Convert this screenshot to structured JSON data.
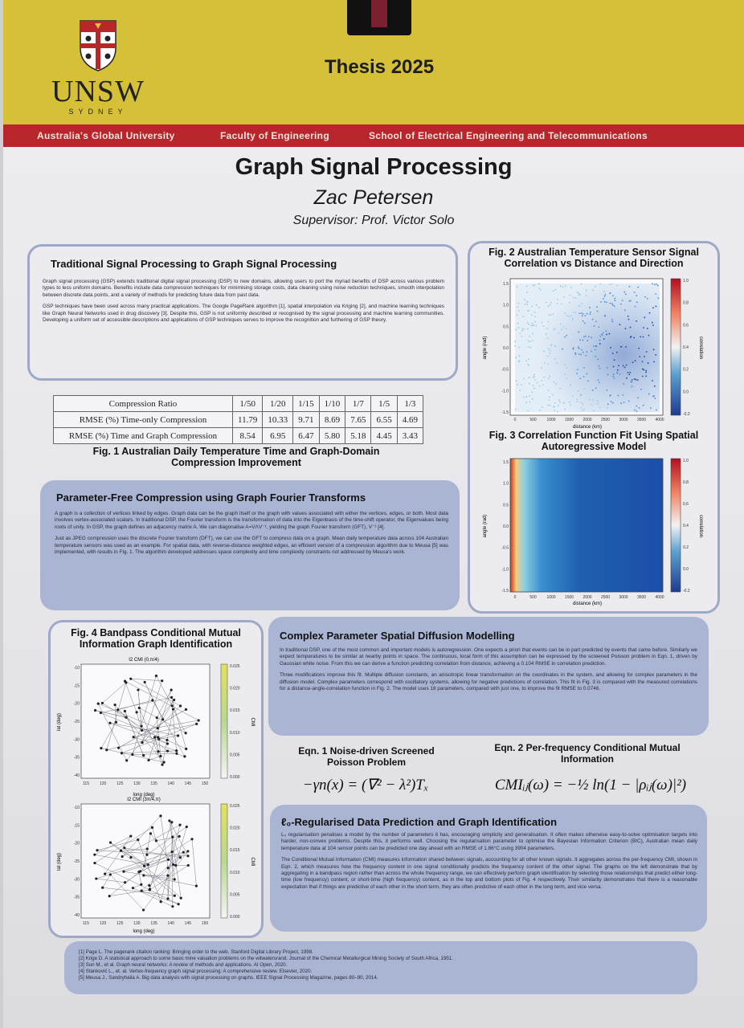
{
  "header": {
    "logo_word": "UNSW",
    "logo_sub": "SYDNEY",
    "thesis_label": "Thesis  2025",
    "bar_left": "Australia's Global University",
    "bar_mid": "Faculty of Engineering",
    "bar_right": "School of Electrical Engineering and Telecommunications",
    "accent": "#d6c038",
    "bar_color": "#b8262c"
  },
  "title": "Graph Signal Processing",
  "author": "Zac Petersen",
  "supervisor": "Supervisor: Prof. Victor Solo",
  "intro": {
    "heading": "Traditional Signal Processing to Graph Signal Processing",
    "p1": "Graph signal processing (GSP) extends traditional digital signal processing (DSP) to new domains, allowing users to port the myriad benefits of DSP across various problem types to less uniform domains. Benefits include data compression techniques for minimising storage costs, data cleaning using noise reduction techniques, smooth interpolation between discrete data points, and a variety of methods for predicting future data from past data.",
    "p2": "GSP techniques have been used across many practical applications. The Google PageRank algorithm [1], spatial interpolation via Kriging [2], and machine learning techniques like Graph Neural Networks used in drug discovery [3]. Despite this, GSP is not uniformly described or recognised by the signal processing and machine learning communities. Developing a uniform set of accessible descriptions and applications of GSP techniques serves to improve the recognition and furthering of GSP theory."
  },
  "table": {
    "header": [
      "Compression Ratio",
      "1/50",
      "1/20",
      "1/15",
      "1/10",
      "1/7",
      "1/5",
      "1/3"
    ],
    "rows": [
      [
        "RMSE (%) Time-only Compression",
        "11.79",
        "10.33",
        "9.71",
        "8.69",
        "7.65",
        "6.55",
        "4.69"
      ],
      [
        "RMSE (%) Time and Graph Compression",
        "8.54",
        "6.95",
        "6.47",
        "5.80",
        "5.18",
        "4.45",
        "3.43"
      ]
    ],
    "caption": "Fig. 1 Australian Daily Temperature Time and Graph-Domain Compression Improvement"
  },
  "gft": {
    "heading": "Parameter-Free Compression using Graph Fourier Transforms",
    "p1": "A graph is a collection of vertices linked by edges. Graph data can be the graph itself or the graph with values associated with either the vertices, edges, or both. Most data involves vertex-associated scalars. In traditional DSP, the Fourier transform is the transformation of data into the Eigenbasis of the time-shift operator, the Eigenvalues being roots of unity. In GSP, the graph defines an adjacency matrix A. We can diagonalise A=VΛV⁻¹, yielding the graph Fourier transform (GFT), V⁻¹ [4].",
    "p2": "Just as JPEG compression uses the discrete Fourier transform (DFT), we can use the GFT to compress data on a graph. Mean daily temperature data across 104 Australian temperature sensors was used as an example. For spatial data, with reverse-distance weighted edges, an efficient version of a compression algorithm due to Meusa [5] was implemented, with results in Fig. 1. The algorithm developed addresses space complexity and time complexity constraints not addressed by Meusa's work."
  },
  "fig2": {
    "title": "Fig. 2 Australian Temperature Sensor Signal Correlation vs Distance and Direction",
    "xlabel": "distance (km)",
    "ylabel": "angle (rad)",
    "cbar_label": "correlation",
    "x_ticks": [
      "0",
      "500",
      "1000",
      "1500",
      "2000",
      "2500",
      "3000",
      "3500",
      "4000"
    ],
    "y_ticks": [
      "1.5",
      "1.0",
      "0.5",
      "0.0",
      "-0.5",
      "-1.0",
      "-1.5"
    ],
    "cbar_ticks": [
      "1.0",
      "0.8",
      "0.6",
      "0.4",
      "0.2",
      "0.0",
      "-0.2"
    ]
  },
  "fig3": {
    "title": "Fig. 3 Correlation Function Fit Using Spatial Autoregressive Model",
    "xlabel": "distance (km)",
    "ylabel": "angle (rad)",
    "cbar_label": "correlation",
    "x_ticks": [
      "0",
      "500",
      "1000",
      "1500",
      "2000",
      "2500",
      "3000",
      "3500",
      "4000"
    ],
    "y_ticks": [
      "1.5",
      "1.0",
      "0.5",
      "0.0",
      "-0.5",
      "-1.0",
      "-1.5"
    ],
    "cbar_ticks": [
      "1.0",
      "0.8",
      "0.6",
      "0.4",
      "0.2",
      "0.0",
      "-0.2"
    ]
  },
  "fig4": {
    "title": "Fig. 4 Bandpass Conditional Mutual Information Graph Identification",
    "top_title": "I2 CMI (0,π/4)",
    "bottom_title": "I2 CMI (3π/4,π)",
    "xlabel": "long (deg)",
    "ylabel": "lat (deg)",
    "cbar_label": "CMI",
    "x_ticks": [
      "115",
      "120",
      "125",
      "130",
      "135",
      "140",
      "145",
      "150"
    ],
    "y_ticks": [
      "-10",
      "-15",
      "-20",
      "-25",
      "-30",
      "-35",
      "-40"
    ],
    "top_cbar_ticks": [
      "0.025",
      "0.020",
      "0.015",
      "0.010",
      "0.005",
      "0.000"
    ],
    "bottom_cbar_ticks": [
      "0.025",
      "0.020",
      "0.015",
      "0.010",
      "0.005",
      "0.000"
    ]
  },
  "diffusion": {
    "heading": "Complex Parameter Spatial Diffusion Modelling",
    "p1": "In traditional DSP, one of the most common and important models is autoregression. One expects a priori that events can be in part predicted by events that came before. Similarly we expect temperatures to be similar at nearby points in space. The continuous, local form of this assumption can be expressed by the screened Poisson problem in Eqn. 1, driven by Gaussian white noise. From this we can derive a function predicting correlation from distance, achieving a 0.104 RMSE in correlation prediction.",
    "p2": "Three modifications improve this fit. Multiple diffusion constants, an anisotropic linear transformation on the coordinates in the system, and allowing for complex parameters in the diffusion model. Complex parameters correspond with oscillatory systems, allowing for negative predictions of correlation. This fit in Fig. 3 is compared with the measured correlations for a distance-angle-correlation function in Fig. 2. The model uses 18 parameters, compared with just one, to improve the fit RMSE to 0.0746."
  },
  "eqn1": {
    "title": "Eqn. 1 Noise-driven Screened Poisson Problem",
    "formula": "−γn(x) = (∇² − λ²)Tₓ"
  },
  "eqn2": {
    "title": "Eqn. 2 Per-frequency Conditional Mutual Information",
    "formula": "CMIᵢⱼ(ω) = −½ ln(1 − |ρᵢⱼ(ω)|²)"
  },
  "l0": {
    "heading": "ℓ₀-Regularised Data Prediction and Graph Identification",
    "p1": "L₀ regularisation penalises a model by the number of parameters it has, encouraging simplicity and generalisation. It often makes otherwise easy-to-solve optimisation targets into harder, non-convex problems. Despite this, it performs well. Choosing the regularisation parameter to optimise the Bayesian Information Criterion (BIC), Australian mean daily temperature data at 104 sensor points can be predicted one day ahead with an RMSE of 1.86°C using 3904 parameters.",
    "p2": "The Conditional Mutual Information (CMI) measures information shared between signals, accounting for all other known signals. It aggregates across the per-frequency CMI, shown in Eqn. 2, which measures how the frequency content in one signal conditionally predicts the frequency content of the other signal. The graphs on the left demonstrate that by aggregating in a bandpass region rather than across the whole frequency range, we can effectively perform graph identification by selecting those relationships that predict either long-time (low frequency) content, or short-time (high frequency) content, as in the top and bottom plots of Fig. 4 respectively. Their similarity demonstrates that there is a reasonable expectation that if things are predictive of each other in the short term, they are often predictive of each other in the long term, and vice versa."
  },
  "references": [
    "[1] Page L. The pagerank citation ranking: Bringing order to the web. Stanford Digital Library Project, 1998.",
    "[2] Krige D. A statistical approach to some basic mine valuation problems on the witwatersrand. Journal of the Chemical Metallurgical Mining Society of South Africa, 1951.",
    "[3] Sun M., et al. Graph neural networks: A review of methods and applications. AI Open, 2020.",
    "[4] Stanković L., et. al. Vertex-frequency graph signal processing: A comprehensive review. Elsevier, 2020.",
    "[5] Meusa J., Sandryhaila A. Big data analysis with signal processing on graphs. IEEE Signal Processing Magazine, pages 80–90, 2014."
  ]
}
